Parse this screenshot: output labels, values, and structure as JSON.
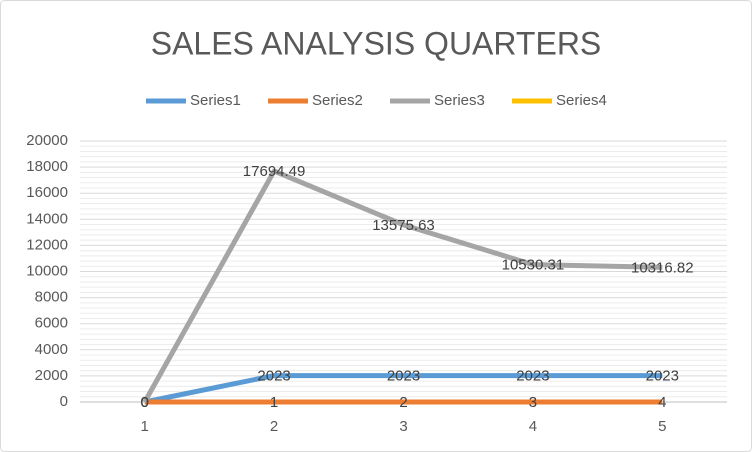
{
  "chart_data": {
    "type": "line",
    "title": "SALES ANALYSIS QUARTERS",
    "categories": [
      "1",
      "2",
      "3",
      "4",
      "5"
    ],
    "series": [
      {
        "name": "Series1",
        "color": "#5b9bd5",
        "values": [
          0,
          2023,
          2023,
          2023,
          2023
        ]
      },
      {
        "name": "Series2",
        "color": "#ed7d31",
        "values": [
          0,
          1,
          2,
          3,
          4
        ]
      },
      {
        "name": "Series3",
        "color": "#a5a5a5",
        "values": [
          0,
          17694.49,
          13575.63,
          10530.31,
          10316.82
        ]
      },
      {
        "name": "Series4",
        "color": "#ffc000",
        "values": [
          null,
          null,
          null,
          null,
          null
        ]
      }
    ],
    "ylim": [
      0,
      20000
    ],
    "yticks": [
      0,
      2000,
      4000,
      6000,
      8000,
      10000,
      12000,
      14000,
      16000,
      18000,
      20000
    ],
    "grid": true,
    "minor_grid": true,
    "data_labels": true,
    "legend": "top"
  }
}
